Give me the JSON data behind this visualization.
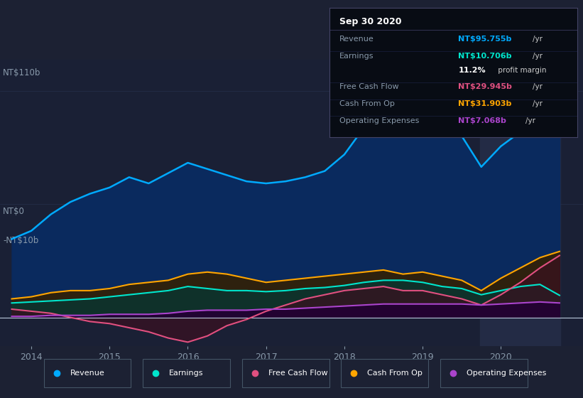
{
  "bg_color": "#1c2133",
  "plot_bg_color": "#1a2035",
  "grid_color": "#2a3050",
  "title_date": "Sep 30 2020",
  "ylim": [
    -14,
    125
  ],
  "xlim_start": 2013.6,
  "xlim_end": 2021.05,
  "x_ticks": [
    2014,
    2015,
    2016,
    2017,
    2018,
    2019,
    2020
  ],
  "highlight_x_start": 2019.73,
  "highlight_x_end": 2020.76,
  "revenue": {
    "color": "#00aaff",
    "fill_color": "#0a2a5e",
    "x": [
      2013.75,
      2014.0,
      2014.25,
      2014.5,
      2014.75,
      2015.0,
      2015.25,
      2015.5,
      2015.75,
      2016.0,
      2016.25,
      2016.5,
      2016.75,
      2017.0,
      2017.25,
      2017.5,
      2017.75,
      2018.0,
      2018.25,
      2018.5,
      2018.75,
      2019.0,
      2019.25,
      2019.5,
      2019.75,
      2020.0,
      2020.25,
      2020.5,
      2020.75
    ],
    "y": [
      38,
      42,
      50,
      56,
      60,
      63,
      68,
      65,
      70,
      75,
      72,
      69,
      66,
      65,
      66,
      68,
      71,
      79,
      92,
      102,
      106,
      103,
      95,
      88,
      73,
      83,
      90,
      98,
      96
    ]
  },
  "earnings": {
    "color": "#00e5cc",
    "fill_color": "#0a3530",
    "x": [
      2013.75,
      2014.0,
      2014.25,
      2014.5,
      2014.75,
      2015.0,
      2015.25,
      2015.5,
      2015.75,
      2016.0,
      2016.25,
      2016.5,
      2016.75,
      2017.0,
      2017.25,
      2017.5,
      2017.75,
      2018.0,
      2018.25,
      2018.5,
      2018.75,
      2019.0,
      2019.25,
      2019.5,
      2019.75,
      2020.0,
      2020.25,
      2020.5,
      2020.75
    ],
    "y": [
      7,
      7.5,
      8,
      8.5,
      9,
      10,
      11,
      12,
      13,
      15,
      14,
      13,
      13,
      12.5,
      13,
      14,
      14.5,
      15.5,
      17,
      18,
      18,
      17,
      15,
      14,
      11,
      13,
      15,
      16,
      10.7
    ]
  },
  "free_cash_flow": {
    "color": "#e05080",
    "fill_color": "#3a1020",
    "x": [
      2013.75,
      2014.0,
      2014.25,
      2014.5,
      2014.75,
      2015.0,
      2015.25,
      2015.5,
      2015.75,
      2016.0,
      2016.25,
      2016.5,
      2016.75,
      2017.0,
      2017.25,
      2017.5,
      2017.75,
      2018.0,
      2018.25,
      2018.5,
      2018.75,
      2019.0,
      2019.25,
      2019.5,
      2019.75,
      2020.0,
      2020.25,
      2020.5,
      2020.75
    ],
    "y": [
      4,
      3,
      2,
      0,
      -2,
      -3,
      -5,
      -7,
      -10,
      -12,
      -9,
      -4,
      -1,
      3,
      6,
      9,
      11,
      13,
      14,
      15,
      13,
      13,
      11,
      9,
      6,
      11,
      17,
      24,
      30
    ]
  },
  "cash_from_op": {
    "color": "#ffa500",
    "fill_color": "#352000",
    "x": [
      2013.75,
      2014.0,
      2014.25,
      2014.5,
      2014.75,
      2015.0,
      2015.25,
      2015.5,
      2015.75,
      2016.0,
      2016.25,
      2016.5,
      2016.75,
      2017.0,
      2017.25,
      2017.5,
      2017.75,
      2018.0,
      2018.25,
      2018.5,
      2018.75,
      2019.0,
      2019.25,
      2019.5,
      2019.75,
      2020.0,
      2020.25,
      2020.5,
      2020.75
    ],
    "y": [
      9,
      10,
      12,
      13,
      13,
      14,
      16,
      17,
      18,
      21,
      22,
      21,
      19,
      17,
      18,
      19,
      20,
      21,
      22,
      23,
      21,
      22,
      20,
      18,
      13,
      19,
      24,
      29,
      32
    ]
  },
  "operating_expenses": {
    "color": "#aa44cc",
    "fill_color": "#220033",
    "x": [
      2013.75,
      2014.0,
      2014.25,
      2014.5,
      2014.75,
      2015.0,
      2015.25,
      2015.5,
      2015.75,
      2016.0,
      2016.25,
      2016.5,
      2016.75,
      2017.0,
      2017.25,
      2017.5,
      2017.75,
      2018.0,
      2018.25,
      2018.5,
      2018.75,
      2019.0,
      2019.25,
      2019.5,
      2019.75,
      2020.0,
      2020.25,
      2020.5,
      2020.75
    ],
    "y": [
      0.5,
      0.5,
      1,
      1,
      1,
      1.5,
      1.5,
      1.5,
      2,
      3,
      3.5,
      3.5,
      3.5,
      4,
      4,
      4.5,
      5,
      5.5,
      6,
      6.5,
      6.5,
      6.5,
      6.5,
      6.5,
      6,
      6.5,
      7,
      7.5,
      7
    ]
  },
  "legend": [
    {
      "label": "Revenue",
      "color": "#00aaff"
    },
    {
      "label": "Earnings",
      "color": "#00e5cc"
    },
    {
      "label": "Free Cash Flow",
      "color": "#e05080"
    },
    {
      "label": "Cash From Op",
      "color": "#ffa500"
    },
    {
      "label": "Operating Expenses",
      "color": "#aa44cc"
    }
  ],
  "info_box": {
    "title": "Sep 30 2020",
    "title_color": "#ffffff",
    "bg": "#080c14",
    "border": "#444466",
    "rows": [
      {
        "label": "Revenue",
        "value": "NT$95.755b",
        "unit": "/yr",
        "value_color": "#00aaff"
      },
      {
        "label": "Earnings",
        "value": "NT$10.706b",
        "unit": "/yr",
        "value_color": "#00e5cc"
      },
      {
        "label": "",
        "value": "11.2%",
        "unit": " profit margin",
        "value_color": "#ffffff"
      },
      {
        "label": "Free Cash Flow",
        "value": "NT$29.945b",
        "unit": "/yr",
        "value_color": "#e05080"
      },
      {
        "label": "Cash From Op",
        "value": "NT$31.903b",
        "unit": "/yr",
        "value_color": "#ffa500"
      },
      {
        "label": "Operating Expenses",
        "value": "NT$7.068b",
        "unit": "/yr",
        "value_color": "#aa44cc"
      }
    ]
  }
}
